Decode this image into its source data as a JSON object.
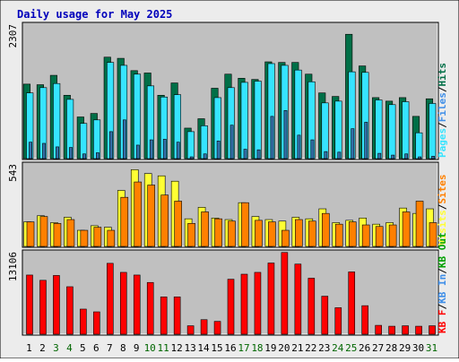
{
  "title": "Daily usage for May 2025",
  "colors": {
    "background": "#ececec",
    "plot_bg": "#c0c0c0",
    "title": "#0000bb",
    "axis_text": "#000000",
    "weekend_day": "#006600",
    "hits": "#006f47",
    "files": "#00b0d8",
    "files_light": "#36e4ff",
    "pages": "#3370aa",
    "visits": "#ff9900",
    "sites": "#ff8000",
    "visits_light": "#ffff33",
    "kb_f": "#ff0000",
    "kb_dark": "#aa0000",
    "kb_in": "#3e8ee8",
    "kb_out": "#00a000"
  },
  "chart_data": [
    {
      "type": "bar",
      "panel": "top",
      "title": "Daily usage for May 2025",
      "ylabel_value": "2307",
      "ylim": [
        0,
        2307
      ],
      "categories": [
        "1",
        "2",
        "3",
        "4",
        "5",
        "6",
        "7",
        "8",
        "9",
        "10",
        "11",
        "12",
        "13",
        "14",
        "15",
        "16",
        "17",
        "18",
        "19",
        "20",
        "21",
        "22",
        "23",
        "24",
        "25",
        "26",
        "27",
        "28",
        "29",
        "30",
        "31"
      ],
      "weekend_days": [
        "3",
        "4",
        "10",
        "11",
        "17",
        "18",
        "24",
        "25",
        "31"
      ],
      "legend": [
        {
          "label": "Pages",
          "color": "#36e4ff"
        },
        {
          "label": "/",
          "color": "#000000"
        },
        {
          "label": "Files",
          "color": "#3e8ee8"
        },
        {
          "label": "/",
          "color": "#000000"
        },
        {
          "label": "Hits",
          "color": "#006f47"
        }
      ],
      "series": [
        {
          "name": "Hits",
          "values": [
            1270,
            1260,
            1420,
            1080,
            710,
            770,
            1730,
            1710,
            1500,
            1460,
            1080,
            1290,
            520,
            680,
            1200,
            1440,
            1370,
            1350,
            1650,
            1640,
            1640,
            1440,
            1120,
            1060,
            2120,
            1580,
            1040,
            980,
            1040,
            720,
            1020
          ]
        },
        {
          "name": "Files",
          "values": [
            1120,
            1210,
            1280,
            1010,
            600,
            660,
            1640,
            1590,
            1440,
            1240,
            1050,
            1090,
            460,
            560,
            1040,
            1210,
            1300,
            1320,
            1620,
            1590,
            1510,
            1310,
            950,
            980,
            1480,
            1470,
            1000,
            920,
            970,
            440,
            940
          ]
        },
        {
          "name": "Pages",
          "values": [
            280,
            260,
            200,
            190,
            80,
            100,
            460,
            660,
            230,
            320,
            330,
            280,
            30,
            80,
            300,
            570,
            160,
            150,
            720,
            820,
            400,
            320,
            120,
            110,
            510,
            620,
            90,
            60,
            80,
            30,
            40
          ]
        }
      ]
    },
    {
      "type": "bar",
      "panel": "middle",
      "ylabel_value": "543",
      "ylim": [
        0,
        543
      ],
      "legend": [
        {
          "label": "Visits",
          "color": "#ffff33"
        },
        {
          "label": "/",
          "color": "#000000"
        },
        {
          "label": "Sites",
          "color": "#ff8000"
        }
      ],
      "series": [
        {
          "name": "Visits",
          "values": [
            160,
            200,
            155,
            190,
            105,
            135,
            125,
            365,
            500,
            475,
            460,
            425,
            180,
            255,
            185,
            175,
            285,
            195,
            175,
            165,
            190,
            180,
            245,
            155,
            170,
            185,
            145,
            155,
            250,
            215,
            245
          ]
        },
        {
          "name": "Sites",
          "values": [
            160,
            195,
            150,
            175,
            105,
            125,
            105,
            320,
            420,
            400,
            335,
            295,
            150,
            225,
            180,
            165,
            285,
            170,
            160,
            105,
            175,
            165,
            215,
            145,
            160,
            140,
            130,
            140,
            225,
            295,
            155
          ]
        }
      ]
    },
    {
      "type": "bar",
      "panel": "bottom",
      "ylabel_value": "13106",
      "ylim": [
        0,
        13106
      ],
      "legend": [
        {
          "label": "KB F",
          "color": "#ff0000"
        },
        {
          "label": "/",
          "color": "#000000"
        },
        {
          "label": "KB In",
          "color": "#3e8ee8"
        },
        {
          "label": "/",
          "color": "#000000"
        },
        {
          "label": "KB Out",
          "color": "#00a000"
        }
      ],
      "series": [
        {
          "name": "KB F",
          "values": [
            9310,
            8480,
            9240,
            7470,
            3950,
            3520,
            11150,
            9730,
            9310,
            8140,
            5870,
            5870,
            1330,
            2290,
            2020,
            8650,
            9440,
            9730,
            11200,
            12860,
            11030,
            8810,
            5980,
            4170,
            9800,
            4490,
            1400,
            1260,
            1330,
            1260,
            1330
          ]
        }
      ]
    }
  ]
}
